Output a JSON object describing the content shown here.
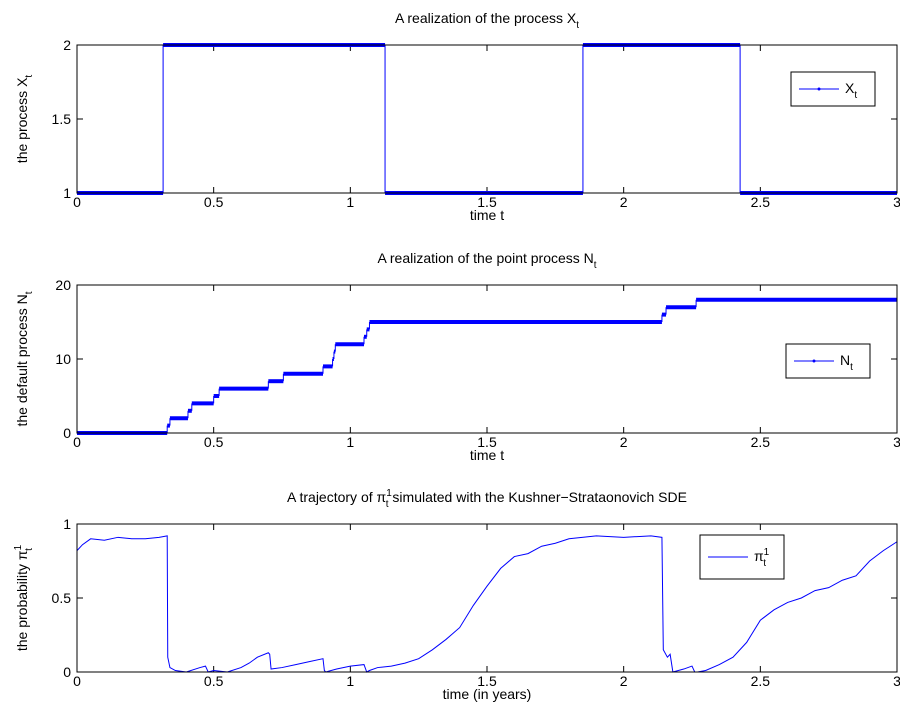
{
  "chart_data": [
    {
      "type": "step",
      "title": [
        {
          "text": "A realization of the process X"
        },
        {
          "text": "t",
          "script": "sub"
        }
      ],
      "xlabel": [
        {
          "text": "time t"
        }
      ],
      "ylabel": [
        {
          "text": "the process X"
        },
        {
          "text": "t",
          "script": "sub"
        }
      ],
      "legend": "northeast",
      "series": [
        {
          "name": [
            {
              "text": "X"
            },
            {
              "text": "t",
              "script": "sub"
            }
          ],
          "color": "#0000ff",
          "x": [
            0,
            0.315,
            1.127,
            1.851,
            2.426
          ],
          "values": [
            1,
            2,
            1,
            2,
            1
          ]
        }
      ],
      "xlim": [
        0,
        3
      ],
      "xticks": [
        0,
        0.5,
        1,
        1.5,
        2,
        2.5,
        3
      ],
      "ylim": [
        1,
        2
      ],
      "yticks": [
        1,
        1.5,
        2
      ]
    },
    {
      "type": "step",
      "title": [
        {
          "text": "A realization of the point process N"
        },
        {
          "text": "t",
          "script": "sub"
        }
      ],
      "xlabel": [
        {
          "text": "time t"
        }
      ],
      "ylabel": [
        {
          "text": "the default process N"
        },
        {
          "text": "t",
          "script": "sub"
        }
      ],
      "legend": "east",
      "series": [
        {
          "name": [
            {
              "text": "N"
            },
            {
              "text": "t",
              "script": "sub"
            }
          ],
          "color": "#0000ff",
          "x": [
            0,
            0.33,
            0.34,
            0.406,
            0.42,
            0.5,
            0.52,
            0.7,
            0.755,
            0.9,
            0.935,
            0.94,
            0.945,
            1.05,
            1.06,
            1.07,
            2.14,
            2.155,
            2.265
          ],
          "values": [
            0,
            1,
            2,
            3,
            4,
            5,
            6,
            7,
            8,
            9,
            10,
            11,
            12,
            13,
            14,
            15,
            16,
            17,
            18
          ]
        }
      ],
      "xlim": [
        0,
        3
      ],
      "xticks": [
        0,
        0.5,
        1,
        1.5,
        2,
        2.5,
        3
      ],
      "ylim": [
        0,
        20
      ],
      "yticks": [
        0,
        10,
        20
      ]
    },
    {
      "type": "line",
      "title": [
        {
          "text": "A trajectory of  π"
        },
        {
          "text": "1",
          "script": "sup"
        },
        {
          "text": "t",
          "script": "sub"
        },
        {
          "text": " simulated with the Kushner−Strataonovich SDE"
        }
      ],
      "xlabel": [
        {
          "text": "time (in years)"
        }
      ],
      "ylabel": [
        {
          "text": "the probability π"
        },
        {
          "text": "1",
          "script": "sup"
        },
        {
          "text": "t",
          "script": "sub"
        }
      ],
      "legend": "north",
      "series": [
        {
          "name": [
            {
              "text": "π"
            },
            {
              "text": "1",
              "script": "sup"
            },
            {
              "text": "t",
              "script": "sub"
            }
          ],
          "color": "#0000ff",
          "x": [
            0,
            0.02,
            0.05,
            0.1,
            0.15,
            0.2,
            0.25,
            0.3,
            0.33,
            0.332,
            0.34,
            0.36,
            0.4,
            0.45,
            0.47,
            0.48,
            0.5,
            0.55,
            0.6,
            0.63,
            0.66,
            0.7,
            0.705,
            0.71,
            0.75,
            0.8,
            0.85,
            0.9,
            0.905,
            0.91,
            0.95,
            1.0,
            1.05,
            1.06,
            1.07,
            1.1,
            1.15,
            1.2,
            1.25,
            1.3,
            1.35,
            1.4,
            1.45,
            1.5,
            1.55,
            1.6,
            1.65,
            1.7,
            1.75,
            1.8,
            1.9,
            2.0,
            2.1,
            2.14,
            2.145,
            2.16,
            2.17,
            2.18,
            2.22,
            2.25,
            2.26,
            2.27,
            2.3,
            2.35,
            2.4,
            2.45,
            2.5,
            2.55,
            2.6,
            2.65,
            2.7,
            2.75,
            2.8,
            2.85,
            2.9,
            2.95,
            3
          ],
          "values": [
            0.82,
            0.86,
            0.9,
            0.89,
            0.91,
            0.9,
            0.9,
            0.91,
            0.92,
            0.1,
            0.03,
            0.01,
            0.0,
            0.03,
            0.04,
            0.0,
            0.01,
            0.0,
            0.03,
            0.06,
            0.1,
            0.13,
            0.12,
            0.02,
            0.03,
            0.05,
            0.07,
            0.09,
            0.01,
            0.0,
            0.02,
            0.04,
            0.05,
            0.0,
            0.01,
            0.03,
            0.04,
            0.06,
            0.09,
            0.15,
            0.22,
            0.3,
            0.45,
            0.58,
            0.7,
            0.78,
            0.8,
            0.85,
            0.87,
            0.9,
            0.92,
            0.91,
            0.92,
            0.91,
            0.15,
            0.1,
            0.12,
            0.0,
            0.02,
            0.04,
            0.0,
            0.0,
            0.01,
            0.05,
            0.1,
            0.2,
            0.35,
            0.42,
            0.47,
            0.5,
            0.55,
            0.57,
            0.62,
            0.65,
            0.75,
            0.82,
            0.88
          ]
        }
      ],
      "xlim": [
        0,
        3
      ],
      "xticks": [
        0,
        0.5,
        1,
        1.5,
        2,
        2.5,
        3
      ],
      "ylim": [
        0,
        1
      ],
      "yticks": [
        0,
        0.5,
        1
      ]
    }
  ]
}
